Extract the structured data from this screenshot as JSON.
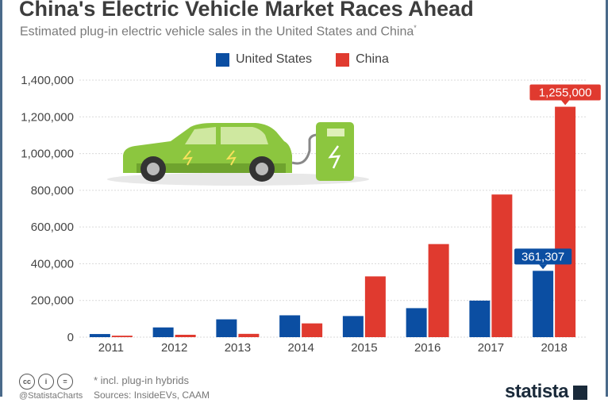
{
  "header": {
    "title": "China's Electric Vehicle Market Races Ahead",
    "subtitle": "Estimated plug-in electric vehicle sales in the United States and China",
    "subtitle_mark": "*"
  },
  "colors": {
    "us": "#0b4ea2",
    "china": "#e03a2f",
    "grid": "#d9d9d9",
    "axis_text": "#444444",
    "car_body": "#8cc63f",
    "car_dark": "#6fa32e"
  },
  "chart_data": {
    "type": "bar",
    "categories": [
      "2011",
      "2012",
      "2013",
      "2014",
      "2015",
      "2016",
      "2017",
      "2018"
    ],
    "series": [
      {
        "name": "United States",
        "values": [
          17000,
          53000,
          97000,
          119000,
          115000,
          158000,
          199000,
          361307
        ]
      },
      {
        "name": "China",
        "values": [
          8000,
          13000,
          18000,
          75000,
          331000,
          507000,
          777000,
          1255000
        ]
      }
    ],
    "ylim": [
      0,
      1400000
    ],
    "yticks": [
      0,
      200000,
      400000,
      600000,
      800000,
      1000000,
      1200000,
      1400000
    ],
    "ytick_labels": [
      "0",
      "200,000",
      "400,000",
      "600,000",
      "800,000",
      "1,000,000",
      "1,200,000",
      "1,400,000"
    ],
    "annotations": [
      {
        "series": "United States",
        "category": "2018",
        "label": "361,307"
      },
      {
        "series": "China",
        "category": "2018",
        "label": "1,255,000"
      }
    ],
    "grid": true,
    "legend": "top-center",
    "xlabel": "",
    "ylabel": ""
  },
  "footer": {
    "cc_icons": [
      "cc",
      "i",
      "="
    ],
    "footnote": "* incl. plug-in hybrids",
    "handle": "@StatistaCharts",
    "source": "Sources: InsideEVs, CAAM",
    "brand": "statista"
  }
}
